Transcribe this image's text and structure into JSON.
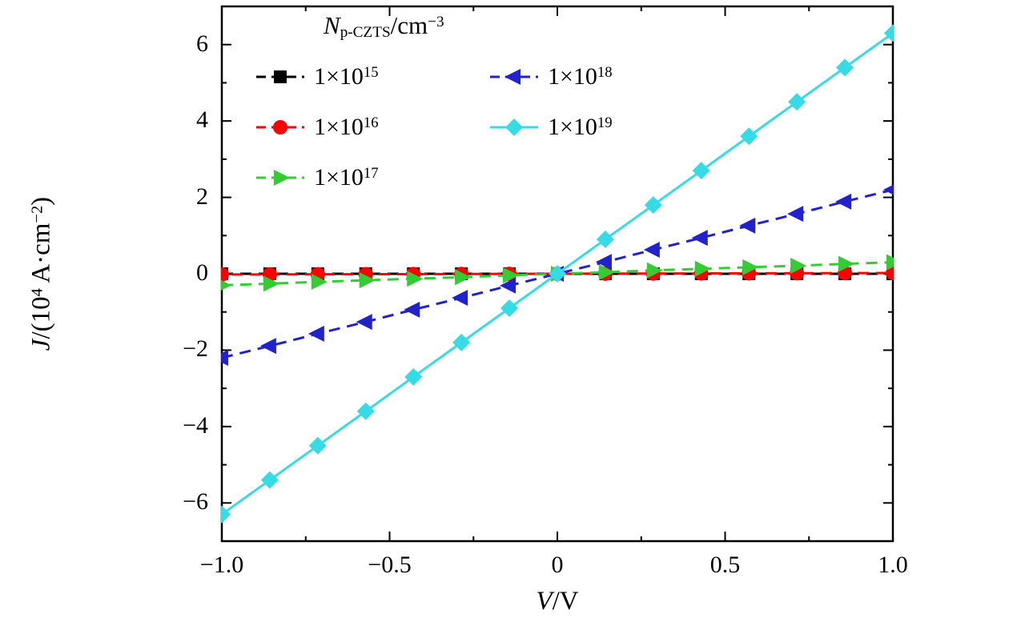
{
  "figure": {
    "background": "#ffffff",
    "axis_color": "#000000"
  },
  "axis_titles": {
    "x": {
      "symbol": "V",
      "rest": "/V",
      "plain": "V/V"
    },
    "y": {
      "symbol": "J",
      "p1": "/(10",
      "exp1": "4",
      "p2": " A·cm",
      "exp2": "−2",
      "p3": ")",
      "plain": "J/(10^4 A·cm^-2)"
    }
  },
  "legend": {
    "title": {
      "symbol": "N",
      "sub": "p-CZTS",
      "unit": "/cm",
      "exp": "−3",
      "plain": "N_p-CZTS/cm^-3"
    }
  },
  "chart_data": {
    "type": "line",
    "title": "",
    "xlabel": "V/V",
    "ylabel": "J/(10^4 A·cm^-2)",
    "xlim": [
      -1,
      1
    ],
    "ylim": [
      -7,
      7
    ],
    "grid": false,
    "legend_position": "upper-left-inside",
    "legend_title": "N_p-CZTS/cm^-3",
    "x_major_ticks": [
      -1.0,
      -0.5,
      0,
      0.5,
      1.0
    ],
    "x_tick_labels": [
      "−1.0",
      "−0.5",
      "0",
      "0.5",
      "1.0"
    ],
    "x_minor_ticks": [
      -0.75,
      -0.25,
      0.25,
      0.75
    ],
    "y_major_ticks": [
      -6,
      -4,
      -2,
      0,
      2,
      4,
      6
    ],
    "y_tick_labels": [
      "−6",
      "−4",
      "−2",
      "0",
      "2",
      "4",
      "6"
    ],
    "y_minor_ticks": [
      -5,
      -3,
      -1,
      1,
      3,
      5
    ],
    "x": [
      -1.0,
      -0.857,
      -0.714,
      -0.571,
      -0.429,
      -0.286,
      -0.143,
      0,
      0.143,
      0.286,
      0.429,
      0.571,
      0.714,
      0.857,
      1.0
    ],
    "series": [
      {
        "id": "1e15",
        "label": "1×10^15",
        "label_base": "1×10",
        "label_exp": "15",
        "color": "#000000",
        "marker": "square",
        "dash": true,
        "dash_offset": 0,
        "values": [
          0,
          0,
          0,
          0,
          0,
          0,
          0,
          0,
          0,
          0,
          0,
          0,
          0,
          0,
          0
        ]
      },
      {
        "id": "1e16",
        "label": "1×10^16",
        "label_base": "1×10",
        "label_exp": "16",
        "color": "#ff0000",
        "marker": "circle",
        "dash": true,
        "dash_offset": 11,
        "values": [
          -0.02,
          -0.017,
          -0.014,
          -0.011,
          -0.009,
          -0.006,
          -0.003,
          0,
          0.003,
          0.006,
          0.009,
          0.011,
          0.014,
          0.017,
          0.02
        ]
      },
      {
        "id": "1e17",
        "label": "1×10^17",
        "label_base": "1×10",
        "label_exp": "17",
        "color": "#33cc33",
        "marker": "triangle-right",
        "dash": true,
        "dash_offset": 0,
        "values": [
          -0.3,
          -0.26,
          -0.21,
          -0.17,
          -0.13,
          -0.09,
          -0.04,
          0,
          0.04,
          0.09,
          0.13,
          0.17,
          0.21,
          0.26,
          0.3
        ]
      },
      {
        "id": "1e18",
        "label": "1×10^18",
        "label_base": "1×10",
        "label_exp": "18",
        "color": "#2222cc",
        "marker": "triangle-left",
        "dash": true,
        "dash_offset": 0,
        "values": [
          -2.2,
          -1.89,
          -1.57,
          -1.26,
          -0.94,
          -0.63,
          -0.31,
          0,
          0.31,
          0.63,
          0.94,
          1.26,
          1.57,
          1.89,
          2.2
        ]
      },
      {
        "id": "1e19",
        "label": "1×10^19",
        "label_base": "1×10",
        "label_exp": "19",
        "color": "#35dce6",
        "marker": "diamond",
        "dash": false,
        "dash_offset": 0,
        "values": [
          -6.3,
          -5.4,
          -4.5,
          -3.6,
          -2.7,
          -1.8,
          -0.9,
          0,
          0.9,
          1.8,
          2.7,
          3.6,
          4.5,
          5.4,
          6.3
        ]
      }
    ]
  }
}
